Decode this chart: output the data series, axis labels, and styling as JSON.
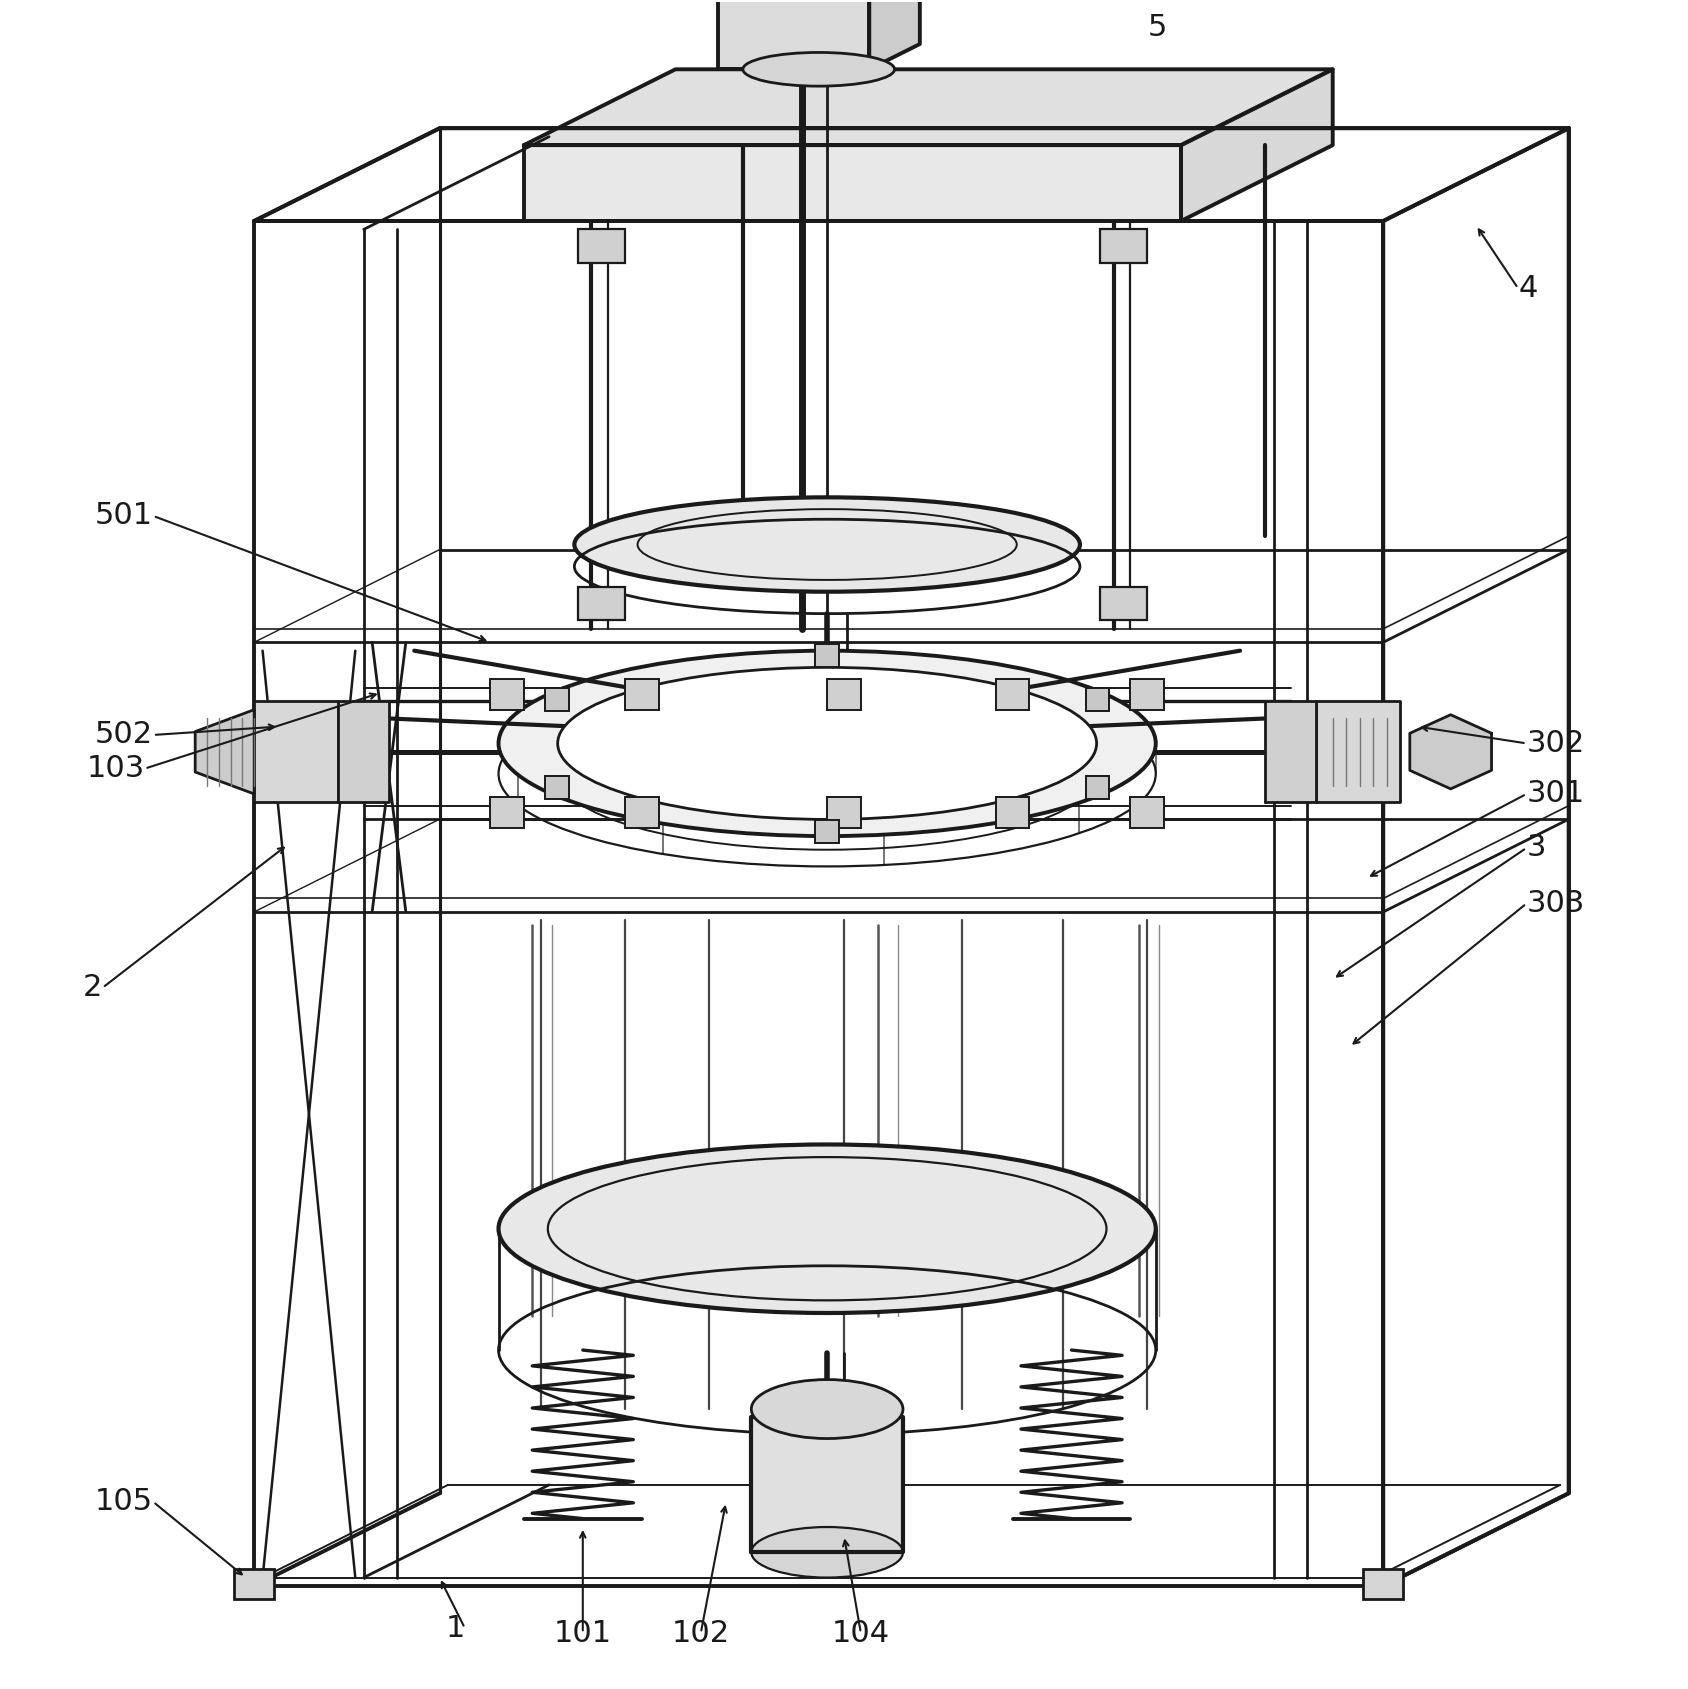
{
  "background_color": "#ffffff",
  "line_color": "#1a1a1a",
  "lw": 2.0,
  "tlw": 2.8,
  "figsize": [
    16.88,
    16.89
  ],
  "dpi": 100,
  "label_fontsize": 22,
  "annotation_fontsize": 22
}
